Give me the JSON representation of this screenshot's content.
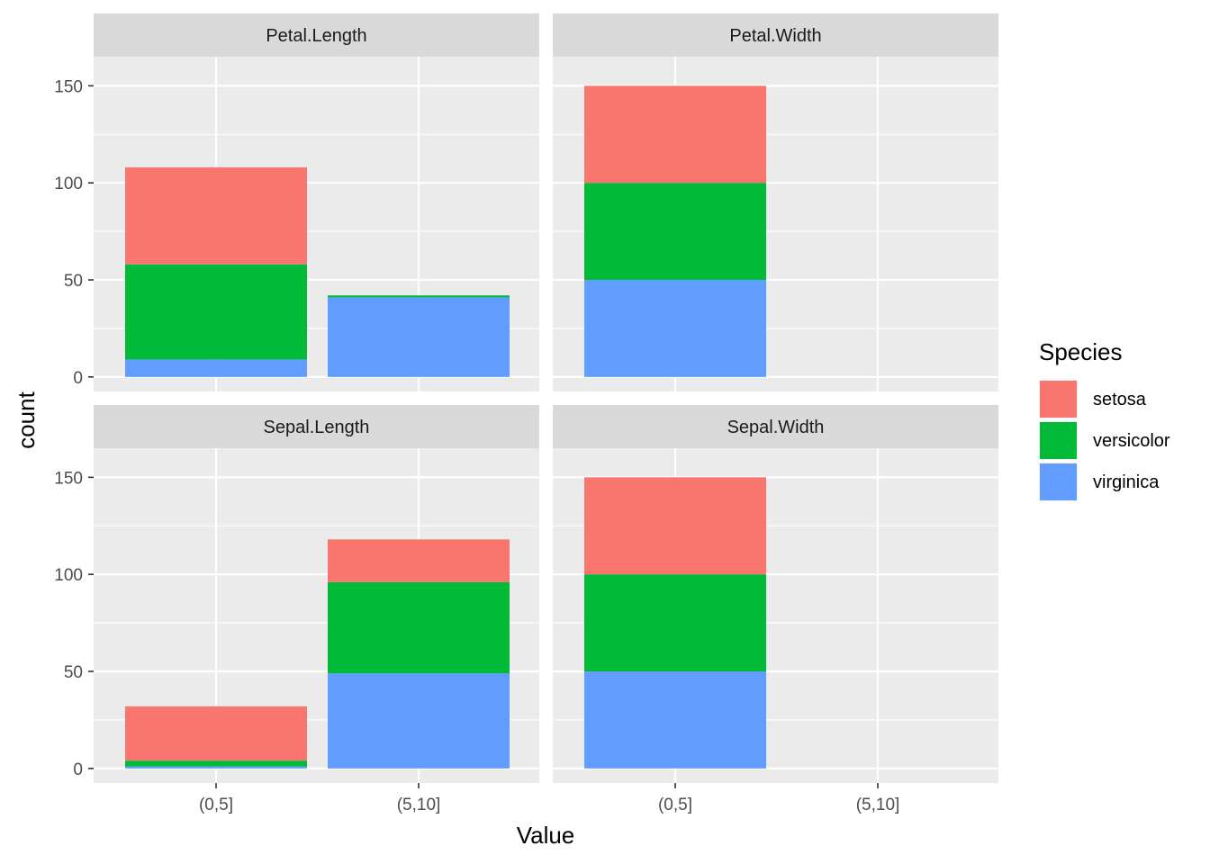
{
  "chart_data": {
    "type": "bar",
    "stacked": true,
    "facet_by": "variable",
    "x_categories": [
      "(0,5]",
      "(5,10]"
    ],
    "xlabel": "Value",
    "ylabel": "count",
    "ylim": [
      0,
      165
    ],
    "y_ticks": [
      0,
      50,
      100,
      150
    ],
    "legend": {
      "title": "Species",
      "placement": "right",
      "entries": [
        {
          "name": "setosa",
          "color": "#F8766D"
        },
        {
          "name": "versicolor",
          "color": "#00BA38"
        },
        {
          "name": "virginica",
          "color": "#619CFF"
        }
      ]
    },
    "grid": true,
    "panels": [
      {
        "title": "Petal.Length",
        "bars": [
          {
            "category": "(0,5]",
            "setosa": 50,
            "versicolor": 49,
            "virginica": 9
          },
          {
            "category": "(5,10]",
            "setosa": 0,
            "versicolor": 1,
            "virginica": 41
          }
        ]
      },
      {
        "title": "Petal.Width",
        "bars": [
          {
            "category": "(0,5]",
            "setosa": 50,
            "versicolor": 50,
            "virginica": 50
          },
          {
            "category": "(5,10]",
            "setosa": 0,
            "versicolor": 0,
            "virginica": 0
          }
        ]
      },
      {
        "title": "Sepal.Length",
        "bars": [
          {
            "category": "(0,5]",
            "setosa": 28,
            "versicolor": 3,
            "virginica": 1
          },
          {
            "category": "(5,10]",
            "setosa": 22,
            "versicolor": 47,
            "virginica": 49
          }
        ]
      },
      {
        "title": "Sepal.Width",
        "bars": [
          {
            "category": "(0,5]",
            "setosa": 50,
            "versicolor": 50,
            "virginica": 50
          },
          {
            "category": "(5,10]",
            "setosa": 0,
            "versicolor": 0,
            "virginica": 0
          }
        ]
      }
    ]
  }
}
